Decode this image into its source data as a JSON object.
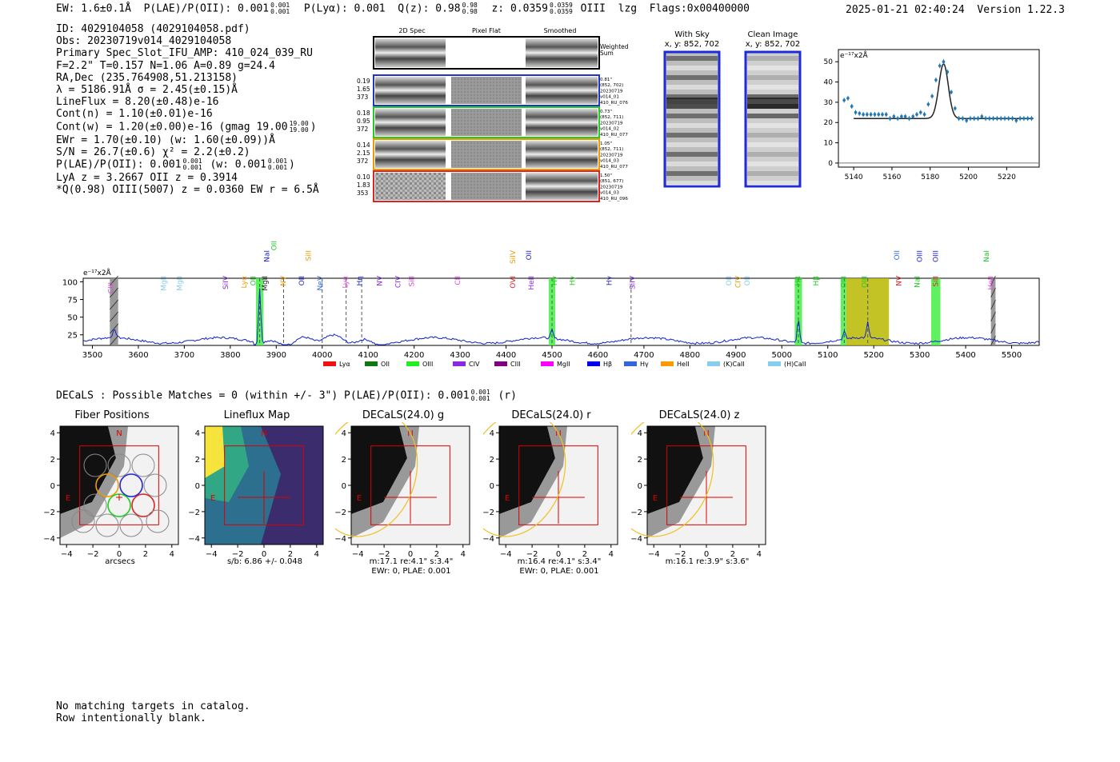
{
  "header": {
    "ew": "EW: 1.6±0.1Å",
    "plae_label": "P(LAE)/P(OII): 0.001",
    "plae_hi": "0.001",
    "plae_lo": "0.001",
    "plya": "P(Lyα): 0.001",
    "q_label": "Q(z): 0.98",
    "q_hi": "0.98",
    "q_lo": "0.98",
    "z_label": "z: 0.0359",
    "z_hi": "0.0359",
    "z_lo": "0.0359",
    "line": "OIII",
    "lzg": "lzg",
    "flags": "Flags:0x00400000",
    "datetime": "2025-01-21 02:40:24",
    "version": "Version 1.22.3"
  },
  "info": {
    "id": "ID: 4029104058 (4029104058.pdf)",
    "obs": "Obs: 20230719v014_4029104058",
    "primary": "Primary Spec_Slot_IFU_AMP: 410_024_039_RU",
    "fparams": "F=2.2\"  T=0.157  N=1.06  A=0.89  g=24.4",
    "radec": "RA,Dec (235.764908,51.213158)",
    "lambda": "λ = 5186.91Å  σ = 2.45(±0.15)Å",
    "lineflux": "LineFlux = 8.20(±0.48)e-16",
    "contn": "Cont(n) = 1.10(±0.01)e-16",
    "contw": "Cont(w) = 1.20(±0.00)e-16 (gmag 19.00",
    "contw_hi": "19.00",
    "contw_lo": "19.00",
    "ewr": "EWr = 1.70(±0.10) (w: 1.60(±0.09))Å",
    "sn": "S/N = 26.7(±0.6)  χ² = 2.2(±0.2)",
    "plae": "P(LAE)/P(OII): 0.001",
    "plae_hi": "0.001",
    "plae_lo": "0.001",
    "plae_w": "(w: 0.001",
    "plae_w_hi": "0.001",
    "plae_w_lo": "0.001",
    "lya": "LyA z = 3.2667  OII z = 0.3914",
    "qline": "*Q(0.98) OIII(5007) z = 0.0360  EW r = 6.5Å"
  },
  "cutouts": {
    "col_titles": [
      "2D Spec",
      "Pixel Flat",
      "Smoothed"
    ],
    "weighted_sum": "Weighted\nSum",
    "rows": [
      {
        "left": [
          "0.19",
          "1.65",
          "373"
        ],
        "right": [
          "0.81\"",
          "(852, 702)",
          "20230719",
          "v014_01",
          "410_RU_076"
        ],
        "color": "#2233cc"
      },
      {
        "left": [
          "0.18",
          "0.95",
          "372"
        ],
        "right": [
          "0.73\"",
          "(852, 711)",
          "20230719",
          "v014_02",
          "410_RU_077"
        ],
        "color": "#22cc22"
      },
      {
        "left": [
          "0.14",
          "2.15",
          "372"
        ],
        "right": [
          "1.05\"",
          "(852, 711)",
          "20230719",
          "v014_03",
          "410_RU_077"
        ],
        "color": "#ee9900"
      },
      {
        "left": [
          "0.10",
          "1.83",
          "353"
        ],
        "right": [
          "1.50\"",
          "(851, 677)",
          "20230719",
          "v014_03",
          "410_RU_096"
        ],
        "color": "#dd2222"
      }
    ]
  },
  "sky": {
    "with_sky_title": "With Sky",
    "with_sky_xy": "x, y: 852, 702",
    "clean_title": "Clean Image",
    "clean_xy": "x, y: 852, 702"
  },
  "fit_plot": {
    "ylabel": "e⁻¹⁷x2Å",
    "x_ticks": [
      "5140",
      "5160",
      "5180",
      "5200",
      "5220"
    ],
    "y_ticks": [
      "0",
      "10",
      "20",
      "30",
      "40",
      "50"
    ],
    "colors": {
      "points": "#1f77b4",
      "model": "#222222"
    }
  },
  "spectrum": {
    "ylabel": "e⁻¹⁷x2Å",
    "x_ticks": [
      "3500",
      "3600",
      "3700",
      "3800",
      "3900",
      "4000",
      "4100",
      "4200",
      "4300",
      "4400",
      "4500",
      "4600",
      "4700",
      "4800",
      "4900",
      "5000",
      "5100",
      "5200",
      "5300",
      "5400",
      "5500"
    ],
    "y_ticks": [
      "25",
      "50",
      "75",
      "100"
    ],
    "line_labels": [
      {
        "t": "CIII",
        "c": "#dd44dd"
      },
      {
        "t": "MgII",
        "c": "#88ccee"
      },
      {
        "t": "MgII",
        "c": "#88ccee"
      },
      {
        "t": "SiIV",
        "c": "#8a2be2"
      },
      {
        "t": "Lyα",
        "c": "#ee9900"
      },
      {
        "t": "OII",
        "c": "#22cc22"
      },
      {
        "t": "MgII",
        "c": "#222222"
      },
      {
        "t": "NV",
        "c": "#ee9900"
      },
      {
        "t": "OII",
        "c": "#2222cc"
      },
      {
        "t": "NeV",
        "c": "#3366dd"
      },
      {
        "t": "Lyα",
        "c": "#dd44dd"
      },
      {
        "t": "Hη",
        "c": "#2222cc"
      },
      {
        "t": "NV",
        "c": "#8a2be2"
      },
      {
        "t": "CIV",
        "c": "#8a2be2"
      },
      {
        "t": "SiII",
        "c": "#dd44dd"
      },
      {
        "t": "CII",
        "c": "#dd44dd"
      },
      {
        "t": "OVI",
        "c": "#dd2222"
      },
      {
        "t": "HeII",
        "c": "#8a2be2"
      },
      {
        "t": "Hγ",
        "c": "#22cc22"
      },
      {
        "t": "Hγ",
        "c": "#22cc22"
      },
      {
        "t": "Hγ",
        "c": "#2222cc"
      },
      {
        "t": "SiIV",
        "c": "#8a2be2"
      },
      {
        "t": "OII",
        "c": "#88ccee"
      },
      {
        "t": "CIV",
        "c": "#ee9900"
      },
      {
        "t": "OII",
        "c": "#88ccee"
      },
      {
        "t": "Hβ",
        "c": "#22cc22"
      },
      {
        "t": "Hβ",
        "c": "#22cc22"
      },
      {
        "t": "OIII",
        "c": "#22cc22"
      },
      {
        "t": "OIII",
        "c": "#22cc22"
      },
      {
        "t": "NV",
        "c": "#dd2222"
      },
      {
        "t": "NaI",
        "c": "#22cc22"
      },
      {
        "t": "SiII",
        "c": "#dd2222"
      },
      {
        "t": "HeII",
        "c": "#dd44dd"
      },
      {
        "t": "SiII",
        "c": "#ee9900"
      },
      {
        "t": "SiIV",
        "c": "#ee9900"
      },
      {
        "t": "OII",
        "c": "#2222cc"
      },
      {
        "t": "OII",
        "c": "#3366dd"
      },
      {
        "t": "OIII",
        "c": "#2222cc"
      },
      {
        "t": "OIII",
        "c": "#2222cc"
      },
      {
        "t": "NaI",
        "c": "#22cc22"
      },
      {
        "t": "NaI",
        "c": "#2222cc"
      },
      {
        "t": "OII",
        "c": "#22cc22"
      }
    ],
    "legend": [
      {
        "t": "Lyα",
        "c": "#ee1111"
      },
      {
        "t": "OII",
        "c": "#117711"
      },
      {
        "t": "OIII",
        "c": "#22ee22"
      },
      {
        "t": "CIV",
        "c": "#8a2be2"
      },
      {
        "t": "CIII",
        "c": "#800080"
      },
      {
        "t": "MgII",
        "c": "#ff00ff"
      },
      {
        "t": "Hβ",
        "c": "#0000ee"
      },
      {
        "t": "Hγ",
        "c": "#3366dd"
      },
      {
        "t": "HeII",
        "c": "#ff9900"
      },
      {
        "t": "(K)CaII",
        "c": "#88ccee"
      },
      {
        "t": "(H)CaII",
        "c": "#88ccee"
      }
    ],
    "colors": {
      "spectrum": "#1122cc"
    }
  },
  "decals_line": {
    "text": "DECaLS : Possible Matches = 0 (within +/- 3\")  P(LAE)/P(OII): 0.001",
    "hi": "0.001",
    "lo": "0.001",
    "suffix": "(r)"
  },
  "bottom_panels": [
    {
      "title": "Fiber Positions",
      "cap1": "arcsecs",
      "cap2": ""
    },
    {
      "title": "Lineflux Map",
      "cap1": "s/b: 6.86 +/- 0.048",
      "cap2": ""
    },
    {
      "title": "DECaLS(24.0) g",
      "cap1": "m:17.1  re:4.1\"  s:3.4\"",
      "cap2": "EWr: 0, PLAE: 0.001"
    },
    {
      "title": "DECaLS(24.0) r",
      "cap1": "m:16.4  re:4.1\"  s:3.4\"",
      "cap2": "EWr: 0, PLAE: 0.001"
    },
    {
      "title": "DECaLS(24.0) z",
      "cap1": "m:16.1  re:3.9\"  s:3.6\"",
      "cap2": ""
    }
  ],
  "panel_ticks": {
    "x": [
      "−4",
      "−2",
      "0",
      "2",
      "4"
    ],
    "y": [
      "4",
      "2",
      "0",
      "−2",
      "−4"
    ],
    "n": "N",
    "e": "E"
  },
  "footer": {
    "line1": "No matching targets in catalog.",
    "line2": "Row intentionally blank."
  }
}
